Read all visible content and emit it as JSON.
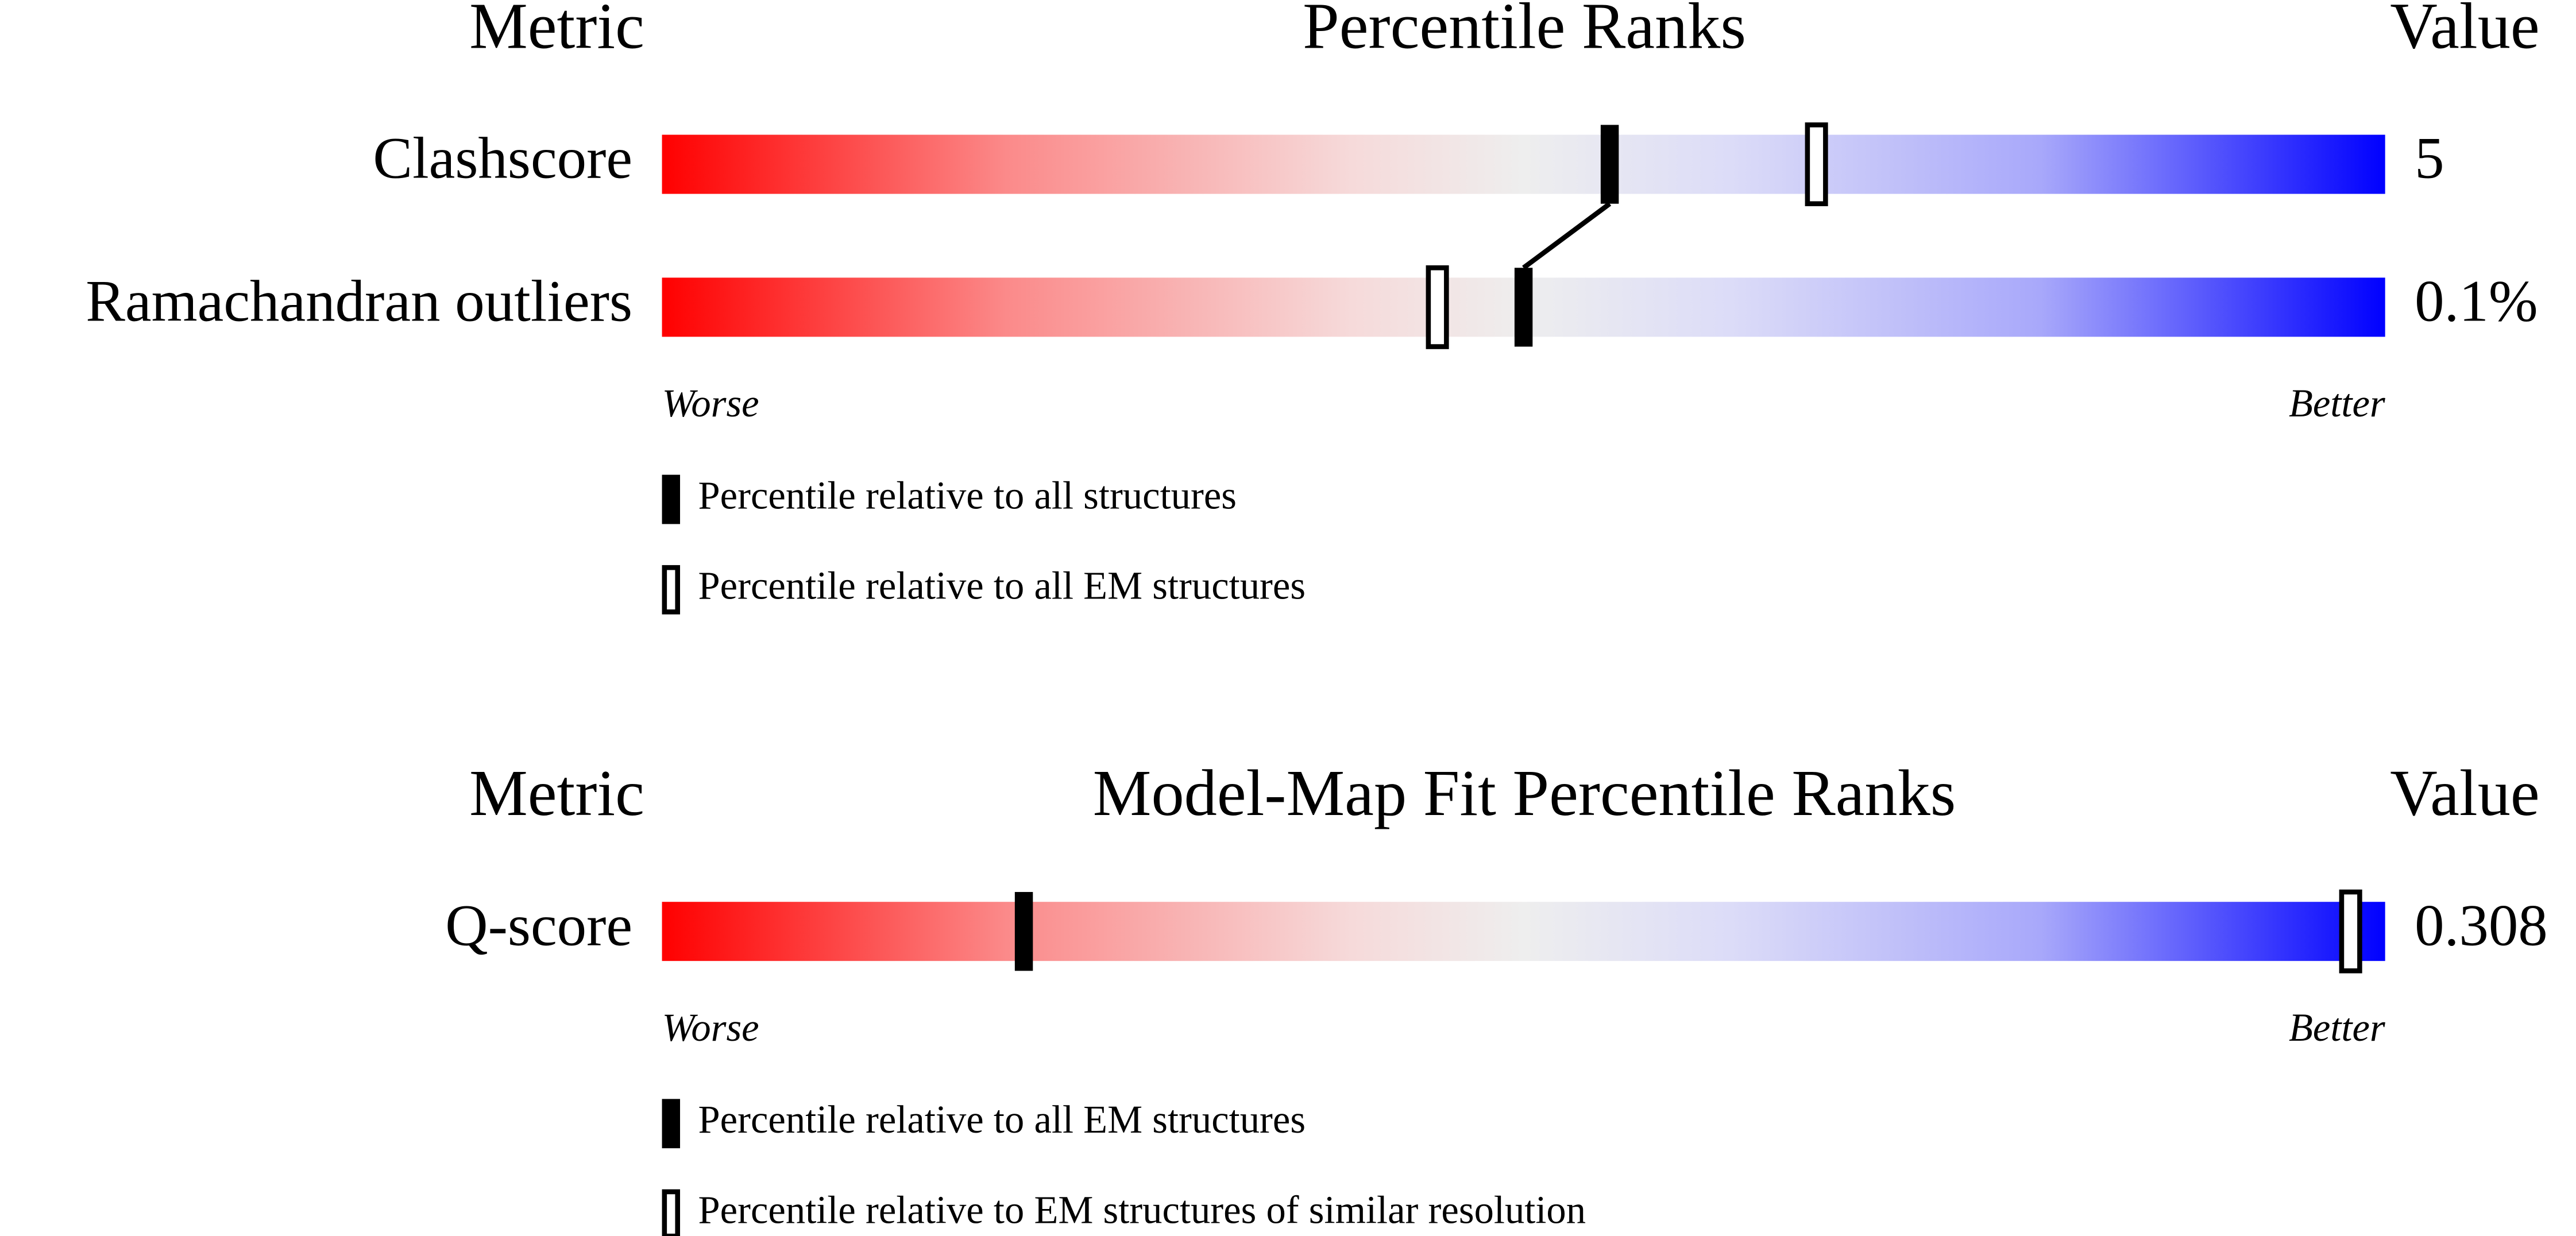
{
  "chart_data": [
    {
      "type": "percentile",
      "metric_header": "Metric",
      "title": "Percentile Ranks",
      "value_header": "Value",
      "categories": [
        "Clashscore",
        "Ramachandran outliers"
      ],
      "metric_values": [
        "5",
        "0.1%"
      ],
      "xlim": [
        0,
        100
      ],
      "low_label": "Worse",
      "high_label": "Better",
      "series": [
        {
          "name": "Percentile relative to all structures",
          "style": "filled",
          "color": "#000000",
          "values": [
            55,
            50
          ]
        },
        {
          "name": "Percentile relative to all EM structures",
          "style": "open",
          "color": "#000000",
          "values": [
            67,
            45
          ]
        }
      ]
    },
    {
      "type": "percentile",
      "metric_header": "Metric",
      "title": "Model-Map Fit Percentile Ranks",
      "value_header": "Value",
      "categories": [
        "Q-score"
      ],
      "metric_values": [
        "0.308"
      ],
      "xlim": [
        0,
        100
      ],
      "low_label": "Worse",
      "high_label": "Better",
      "series": [
        {
          "name": "Percentile relative to all EM structures",
          "style": "filled",
          "color": "#000000",
          "values": [
            21
          ]
        },
        {
          "name": "Percentile relative to EM structures of similar resolution",
          "style": "open",
          "color": "#000000",
          "values": [
            98
          ]
        }
      ]
    }
  ]
}
